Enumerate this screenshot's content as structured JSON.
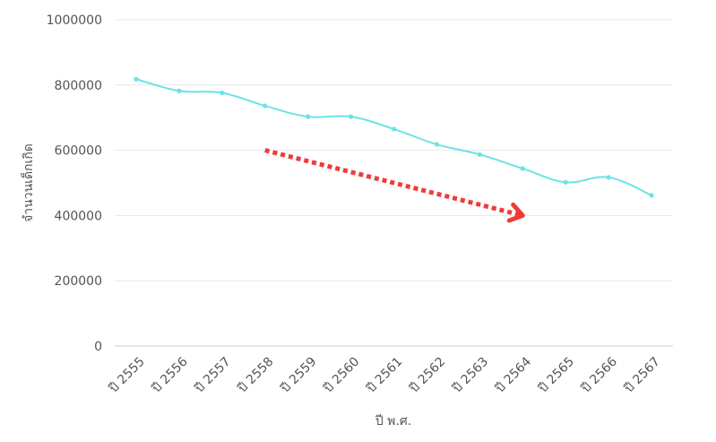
{
  "chart_data": {
    "type": "line",
    "title": "",
    "xlabel": "ปี พ.ศ.",
    "ylabel": "จำนวนเด็กเกิด",
    "ylim": [
      0,
      1000000
    ],
    "yticks": [
      0,
      200000,
      400000,
      600000,
      800000,
      1000000
    ],
    "categories": [
      "ปี 2555",
      "ปี 2556",
      "ปี 2557",
      "ปี 2558",
      "ปี 2559",
      "ปี 2560",
      "ปี 2561",
      "ปี 2562",
      "ปี 2563",
      "ปี 2564",
      "ปี 2565",
      "ปี 2566",
      "ปี 2567"
    ],
    "series": [
      {
        "values": [
          818000,
          782000,
          776000,
          736000,
          703000,
          703000,
          665000,
          618000,
          587000,
          544000,
          502000,
          517000,
          462000
        ],
        "color": "#6be3e6"
      }
    ],
    "annotation": {
      "type": "dotted-arrow",
      "color": "#f03a3a",
      "from": {
        "x": "ปี 2558",
        "y": 600000
      },
      "to": {
        "x": "ปี 2564",
        "y": 400000
      }
    },
    "grid": true,
    "legend": "none"
  }
}
